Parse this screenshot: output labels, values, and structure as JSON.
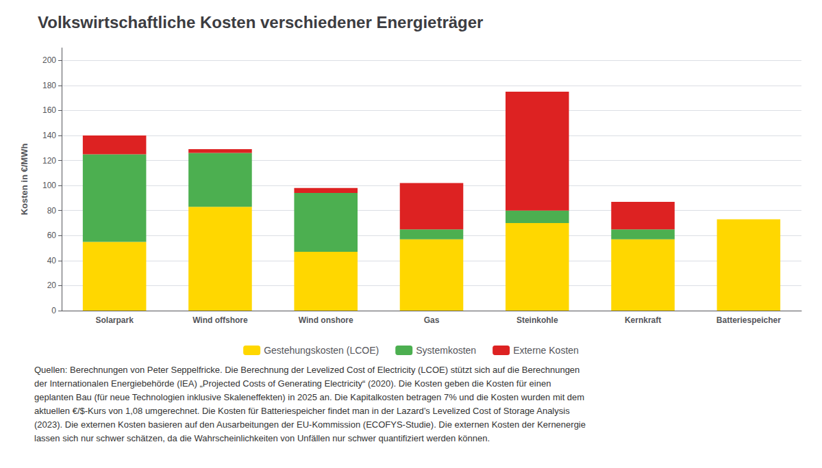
{
  "chart_data": {
    "type": "bar",
    "title": "Volkswirtschaftliche Kosten verschiedener Energieträger",
    "ylabel": "Kosten in €/MWh",
    "categories": [
      "Solarpark",
      "Wind offshore",
      "Wind onshore",
      "Gas",
      "Steinkohle",
      "Kernkraft",
      "Batteriespeicher"
    ],
    "series": [
      {
        "name": "Gestehungskosten (LCOE)",
        "color": "#FFD700",
        "values": [
          55,
          83,
          47,
          57,
          70,
          57,
          73
        ]
      },
      {
        "name": "Systemkosten",
        "color": "#4CAF50",
        "values": [
          70,
          43,
          47,
          8,
          10,
          8,
          0
        ]
      },
      {
        "name": "Externe Kosten",
        "color": "#DD2222",
        "values": [
          15,
          3,
          4,
          37,
          95,
          22,
          0
        ]
      }
    ],
    "stacked": true,
    "ylim": [
      0,
      210
    ],
    "yticks": [
      0,
      20,
      40,
      60,
      80,
      100,
      120,
      140,
      160,
      180,
      200
    ],
    "grid": true,
    "legend": "bottom",
    "annotations": [
      "Quellen: Berechnungen von Peter Seppelfricke. Die Berechnung der Levelized Cost of Electricity (LCOE) stützt sich auf die Berechnungen",
      "der Internationalen Energiebehörde (IEA) „Projected Costs of Generating Electricity“ (2020). Die Kosten geben die Kosten für einen",
      "geplanten Bau (für neue Technologien inklusive Skaleneffekten) in 2025 an. Die Kapitalkosten betragen 7% und die Kosten wurden mit dem",
      "aktuellen €/$-Kurs von 1,08 umgerechnet. Die Kosten für Batteriespeicher findet man in der Lazard’s Levelized Cost of Storage Analysis",
      "(2023). Die externen Kosten basieren auf den Ausarbeitungen der EU-Kommission (ECOFYS-Studie). Die externen Kosten der Kernenergie",
      "lassen sich nur schwer schätzen, da die Wahrscheinlichkeiten von Unfällen nur schwer quantifiziert werden können."
    ]
  }
}
